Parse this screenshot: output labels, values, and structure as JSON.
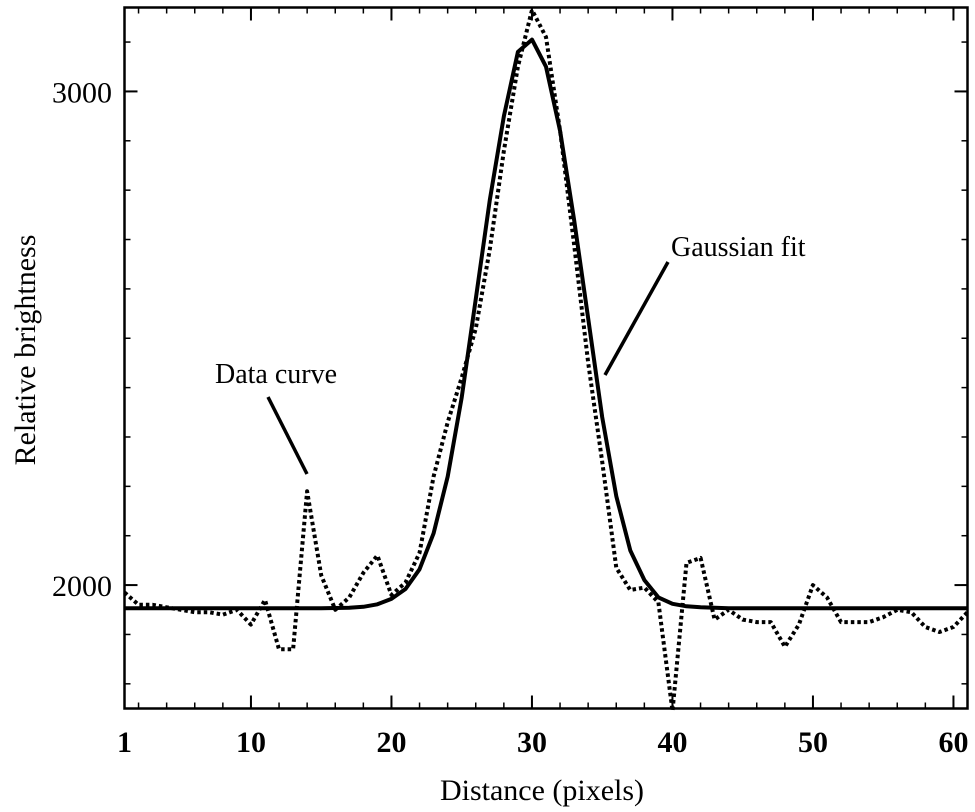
{
  "chart_data": {
    "type": "line",
    "xlabel": "Distance (pixels)",
    "ylabel": "Relative brightness",
    "xlim": [
      1,
      61
    ],
    "ylim": [
      1750,
      3170
    ],
    "x_ticks": [
      1,
      10,
      20,
      30,
      40,
      50,
      60
    ],
    "y_ticks": [
      2000,
      3000
    ],
    "grid": false,
    "series": [
      {
        "name": "Data curve",
        "style": "dotted",
        "color": "#000000",
        "x": [
          1,
          2,
          3,
          4,
          5,
          6,
          7,
          8,
          9,
          10,
          11,
          12,
          13,
          14,
          15,
          16,
          17,
          18,
          19,
          20,
          21,
          22,
          23,
          24,
          25,
          26,
          27,
          28,
          29,
          30,
          31,
          32,
          33,
          34,
          35,
          36,
          37,
          38,
          39,
          40,
          41,
          42,
          43,
          44,
          45,
          46,
          47,
          48,
          49,
          50,
          51,
          52,
          53,
          54,
          55,
          56,
          57,
          58,
          59,
          60,
          61
        ],
        "y": [
          1985,
          1960,
          1960,
          1955,
          1950,
          1945,
          1945,
          1940,
          1950,
          1920,
          1970,
          1870,
          1870,
          2190,
          2020,
          1950,
          1975,
          2025,
          2060,
          1980,
          2005,
          2065,
          2220,
          2330,
          2420,
          2520,
          2680,
          2880,
          3050,
          3165,
          3110,
          2920,
          2690,
          2450,
          2250,
          2035,
          1990,
          1995,
          1965,
          1745,
          2045,
          2055,
          1930,
          1950,
          1930,
          1925,
          1925,
          1875,
          1920,
          2000,
          1975,
          1925,
          1925,
          1925,
          1935,
          1950,
          1945,
          1915,
          1905,
          1915,
          1945
        ]
      },
      {
        "name": "Gaussian fit",
        "style": "solid",
        "color": "#000000",
        "x": [
          1,
          5,
          10,
          15,
          17,
          18,
          19,
          20,
          21,
          22,
          23,
          24,
          25,
          26,
          27,
          28,
          29,
          30,
          31,
          32,
          33,
          34,
          35,
          36,
          37,
          38,
          39,
          40,
          41,
          42,
          44,
          48,
          55,
          61
        ],
        "y": [
          1953,
          1953,
          1953,
          1953,
          1954,
          1956,
          1961,
          1972,
          1992,
          2032,
          2105,
          2220,
          2380,
          2580,
          2780,
          2950,
          3080,
          3105,
          3050,
          2920,
          2740,
          2540,
          2340,
          2180,
          2070,
          2010,
          1975,
          1962,
          1957,
          1955,
          1953,
          1953,
          1953,
          1953
        ]
      }
    ],
    "annotations": [
      {
        "text": "Data curve"
      },
      {
        "text": "Gaussian fit"
      }
    ]
  }
}
